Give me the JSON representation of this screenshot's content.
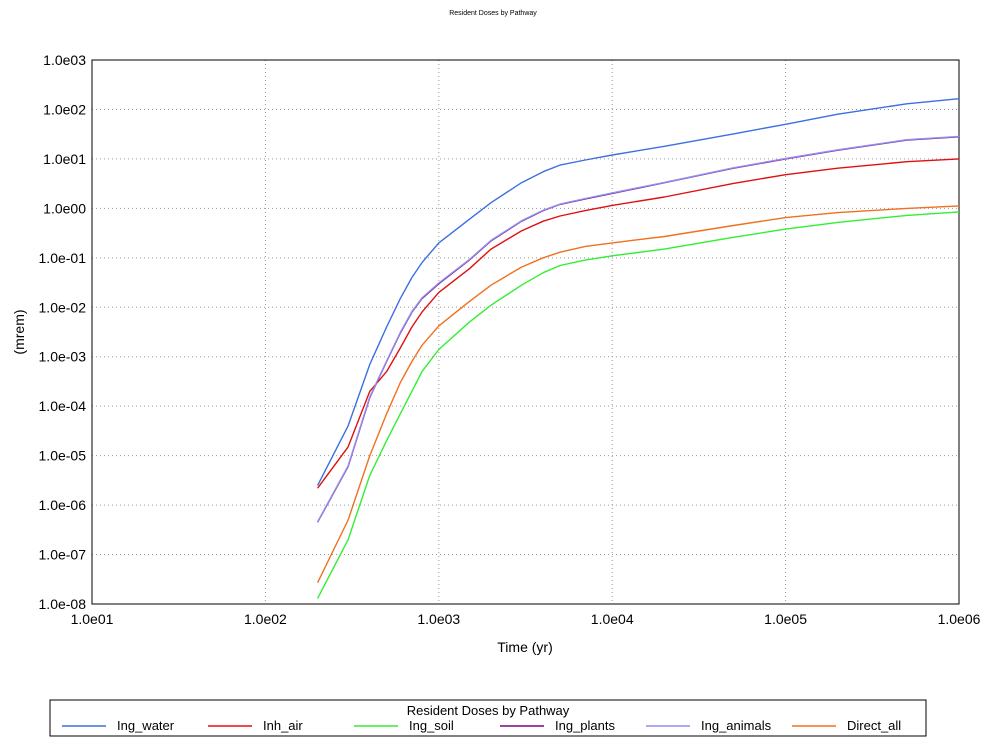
{
  "chart_data": {
    "type": "line",
    "title": "Resident Doses by Pathway",
    "xlabel": "Time (yr)",
    "ylabel": "(mrem)",
    "xscale": "log",
    "yscale": "log",
    "xlim": [
      10,
      1000000
    ],
    "ylim": [
      1e-08,
      1000
    ],
    "grid": true,
    "x_ticks": [
      "1.0e01",
      "1.0e02",
      "1.0e03",
      "1.0e04",
      "1.0e05",
      "1.0e06"
    ],
    "y_ticks": [
      "1.0e-08",
      "1.0e-07",
      "1.0e-06",
      "1.0e-05",
      "1.0e-04",
      "1.0e-03",
      "1.0e-02",
      "1.0e-01",
      "1.0e00",
      "1.0e01",
      "1.0e02",
      "1.0e03"
    ],
    "legend": {
      "title": "Resident Doses by Pathway",
      "placement": "bottom"
    },
    "series": [
      {
        "name": "Ing_water",
        "color": "#3c6fe0",
        "x": [
          200,
          300,
          400,
          500,
          600,
          700,
          800,
          1000,
          1500,
          2000,
          3000,
          4000,
          5000,
          7000,
          10000,
          20000,
          50000,
          100000,
          200000,
          500000,
          1000000
        ],
        "y": [
          2.5e-06,
          4e-05,
          0.0007,
          0.004,
          0.015,
          0.04,
          0.08,
          0.2,
          0.6,
          1.3,
          3.3,
          5.5,
          7.5,
          9.5,
          12,
          18,
          32,
          50,
          80,
          130,
          165
        ]
      },
      {
        "name": "Inh_air",
        "color": "#e01010",
        "x": [
          200,
          300,
          400,
          500,
          600,
          700,
          800,
          1000,
          1500,
          2000,
          3000,
          4000,
          5000,
          7000,
          10000,
          20000,
          50000,
          100000,
          200000,
          500000,
          1000000
        ],
        "y": [
          2.2e-06,
          1.5e-05,
          0.0002,
          0.0005,
          0.0015,
          0.004,
          0.008,
          0.02,
          0.06,
          0.15,
          0.35,
          0.55,
          0.7,
          0.9,
          1.15,
          1.7,
          3.2,
          4.8,
          6.5,
          8.8,
          10
        ]
      },
      {
        "name": "Ing_soil",
        "color": "#33ee33",
        "x": [
          200,
          300,
          400,
          500,
          600,
          700,
          800,
          1000,
          1500,
          2000,
          3000,
          4000,
          5000,
          7000,
          10000,
          20000,
          50000,
          100000,
          200000,
          500000,
          1000000
        ],
        "y": [
          1.3e-08,
          2e-07,
          4e-06,
          2e-05,
          7e-05,
          0.0002,
          0.0005,
          0.0014,
          0.005,
          0.011,
          0.028,
          0.05,
          0.07,
          0.09,
          0.11,
          0.15,
          0.26,
          0.38,
          0.52,
          0.72,
          0.85
        ]
      },
      {
        "name": "Ing_plants",
        "color": "#800080",
        "x": [
          200,
          300,
          400,
          500,
          600,
          700,
          800,
          1000,
          1500,
          2000,
          3000,
          4000,
          5000,
          7000,
          10000,
          20000,
          50000,
          100000,
          200000,
          500000,
          1000000
        ],
        "y": [
          4.5e-07,
          6e-06,
          0.00015,
          0.0008,
          0.003,
          0.008,
          0.015,
          0.03,
          0.09,
          0.22,
          0.55,
          0.9,
          1.2,
          1.55,
          2.0,
          3.3,
          6.5,
          10,
          15,
          24,
          28
        ]
      },
      {
        "name": "Ing_animals",
        "color": "#8f8ff0",
        "x": [
          200,
          300,
          400,
          500,
          600,
          700,
          800,
          1000,
          1500,
          2000,
          3000,
          4000,
          5000,
          7000,
          10000,
          20000,
          50000,
          100000,
          200000,
          500000,
          1000000
        ],
        "y": [
          4.6e-07,
          6.2e-06,
          0.000155,
          0.00082,
          0.0031,
          0.0082,
          0.0155,
          0.031,
          0.092,
          0.225,
          0.56,
          0.92,
          1.22,
          1.58,
          2.05,
          3.35,
          6.6,
          10.2,
          15.3,
          24.5,
          28.5
        ]
      },
      {
        "name": "Direct_all",
        "color": "#f07020",
        "x": [
          200,
          300,
          400,
          500,
          600,
          700,
          800,
          1000,
          1500,
          2000,
          3000,
          4000,
          5000,
          7000,
          10000,
          20000,
          50000,
          100000,
          200000,
          500000,
          1000000
        ],
        "y": [
          2.7e-08,
          5e-07,
          1e-05,
          7e-05,
          0.0003,
          0.0008,
          0.0017,
          0.0042,
          0.013,
          0.028,
          0.065,
          0.1,
          0.13,
          0.17,
          0.2,
          0.27,
          0.45,
          0.65,
          0.82,
          1.0,
          1.12
        ]
      }
    ]
  }
}
